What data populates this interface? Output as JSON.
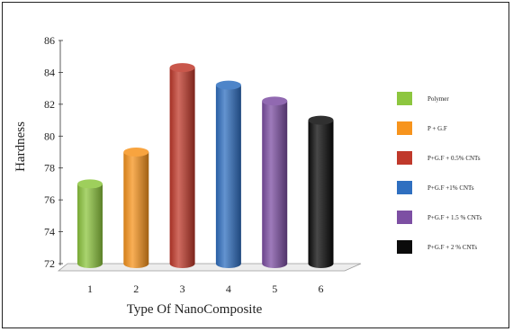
{
  "chart_data": {
    "type": "bar",
    "style": "3d-cylinder",
    "categories": [
      "1",
      "2",
      "3",
      "4",
      "5",
      "6"
    ],
    "values": [
      77.0,
      79.0,
      84.3,
      83.2,
      82.2,
      81.0
    ],
    "colors": [
      "#8dc63f",
      "#f7941d",
      "#c0392b",
      "#2f6fc0",
      "#7d4fa3",
      "#0b0b0b"
    ],
    "xlabel": "Type Of NanoComposite",
    "ylabel": "Hardness",
    "ylim": [
      72,
      86
    ],
    "yticks": [
      "72",
      "74",
      "76",
      "78",
      "80",
      "82",
      "84",
      "86"
    ],
    "legend_position": "right",
    "legend": [
      {
        "label": "Polymer",
        "color": "#8dc63f"
      },
      {
        "label": "P + G.F",
        "color": "#f7941d"
      },
      {
        "label": "P+G.F + 0.5% CNTs",
        "color": "#c0392b"
      },
      {
        "label": "P+G.F +1% CNTs",
        "color": "#2f6fc0"
      },
      {
        "label": "P+G.F + 1.5 % CNTs",
        "color": "#7d4fa3"
      },
      {
        "label": "P+G.F + 2 % CNTs",
        "color": "#0b0b0b"
      }
    ],
    "grid": false
  }
}
